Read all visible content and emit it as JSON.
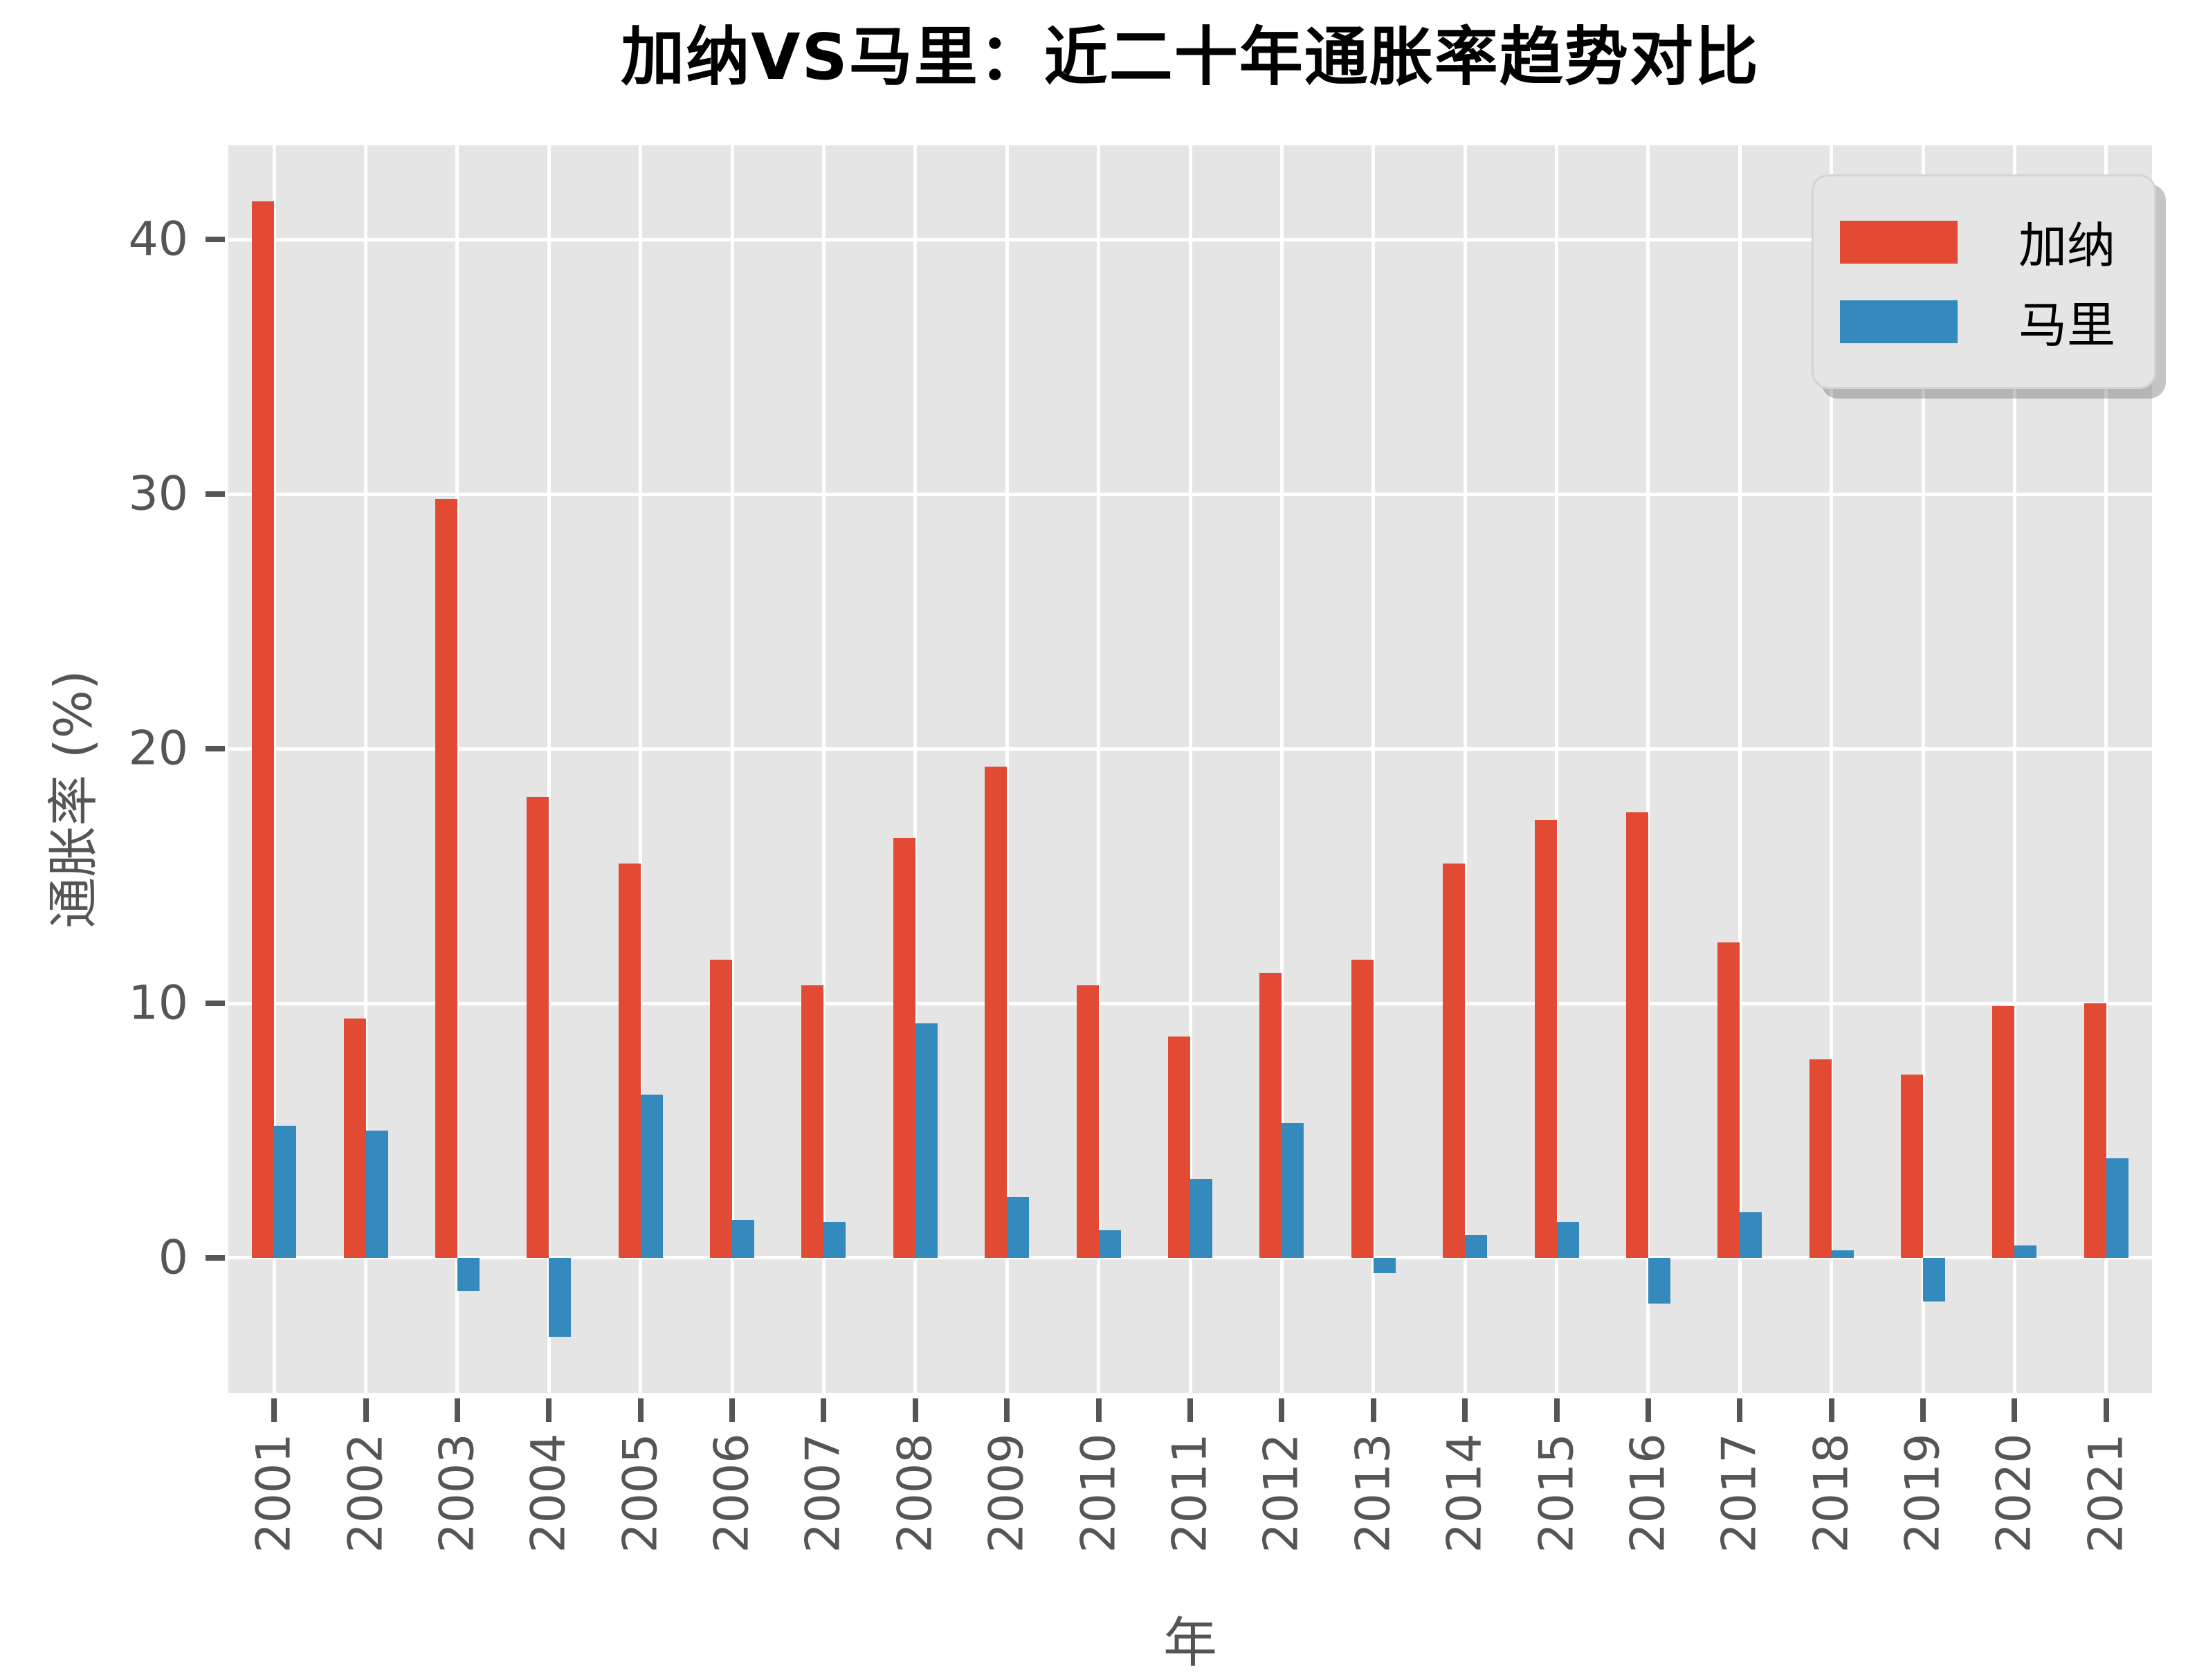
{
  "title": "加纳VS马里：近二十年通胀率趋势对比",
  "colors": {
    "ghana_red": "#E24A33",
    "mali_blue": "#348ABD",
    "plot_background": "#E5E5E5",
    "gridline": "#FFFFFF",
    "tick_text": "#555555",
    "title_text": "#000000"
  },
  "legend": {
    "items": [
      {
        "key": "ghana",
        "label": "加纳",
        "color": "#E24A33"
      },
      {
        "key": "mali",
        "label": "马里",
        "color": "#348ABD"
      }
    ]
  },
  "chart_data": {
    "type": "bar",
    "title": "加纳VS马里：近二十年通胀率趋势对比",
    "xlabel": "年",
    "ylabel": "通胀率 (%)",
    "categories": [
      "2001",
      "2002",
      "2003",
      "2004",
      "2005",
      "2006",
      "2007",
      "2008",
      "2009",
      "2010",
      "2011",
      "2012",
      "2013",
      "2014",
      "2015",
      "2016",
      "2017",
      "2018",
      "2019",
      "2020",
      "2021"
    ],
    "series": [
      {
        "key": "ghana",
        "name": "加纳",
        "color": "#E24A33",
        "values": [
          41.5,
          9.4,
          29.8,
          18.1,
          15.5,
          11.7,
          10.7,
          16.5,
          19.3,
          10.7,
          8.7,
          11.2,
          11.7,
          15.5,
          17.2,
          17.5,
          12.4,
          7.8,
          7.2,
          9.9,
          10.0
        ]
      },
      {
        "key": "mali",
        "name": "马里",
        "color": "#348ABD",
        "values": [
          5.2,
          5.0,
          -1.3,
          -3.1,
          6.4,
          1.5,
          1.4,
          9.2,
          2.4,
          1.1,
          3.1,
          5.3,
          -0.6,
          0.9,
          1.4,
          -1.8,
          1.8,
          0.3,
          -1.7,
          0.5,
          3.9
        ]
      }
    ],
    "ylim": [
      -5.3,
      43.7
    ],
    "yticks": [
      0,
      10,
      20,
      30,
      40
    ],
    "grid": true,
    "legend_position": "upper right"
  }
}
